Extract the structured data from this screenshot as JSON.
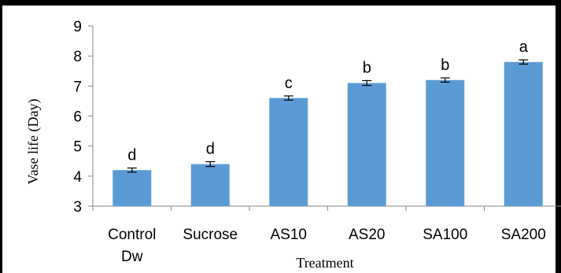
{
  "chart_data": {
    "type": "bar",
    "xlabel": "Treatment",
    "ylabel": "Vase life (Day)",
    "ylim": [
      3,
      9
    ],
    "yticks": [
      3,
      4,
      5,
      6,
      7,
      8,
      9
    ],
    "categories": [
      [
        "Control",
        "Dw"
      ],
      [
        "Sucrose"
      ],
      [
        "AS10"
      ],
      [
        "AS20"
      ],
      [
        "SA100"
      ],
      [
        "SA200"
      ]
    ],
    "values": [
      4.2,
      4.4,
      6.6,
      7.1,
      7.2,
      7.8
    ],
    "errors": [
      0.07,
      0.08,
      0.07,
      0.08,
      0.07,
      0.07
    ],
    "significance_letters": [
      "d",
      "d",
      "c",
      "b",
      "b",
      "a"
    ],
    "bar_color": "#5b9bd5",
    "grid": false,
    "legend": "none"
  }
}
